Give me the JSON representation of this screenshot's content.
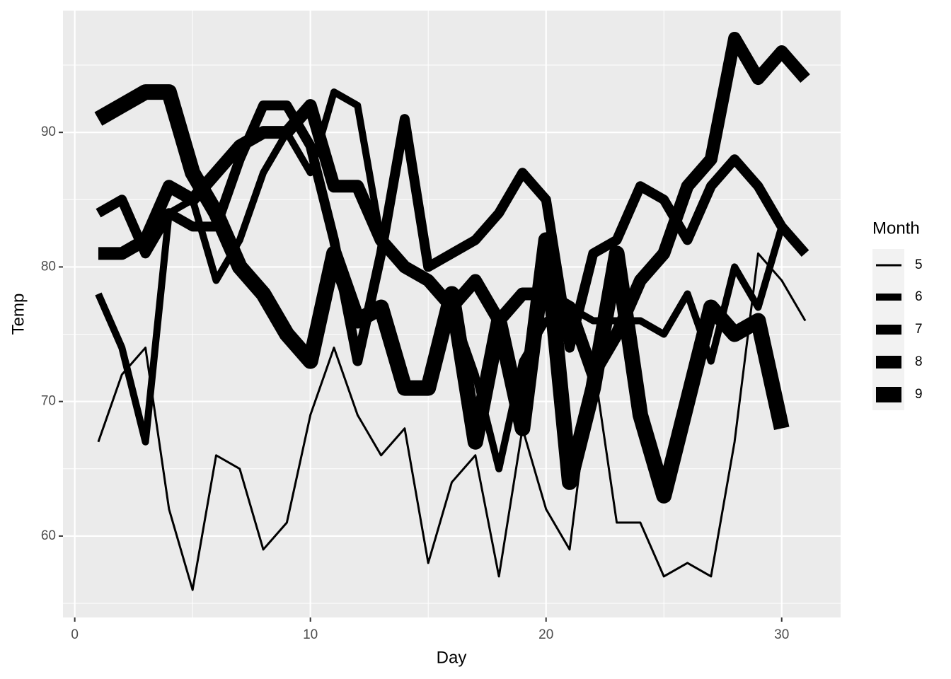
{
  "chart_data": {
    "type": "line",
    "x_label": "Day",
    "y_label": "Temp",
    "legend_title": "Month",
    "legend_position": "right",
    "grid": true,
    "x": [
      1,
      2,
      3,
      4,
      5,
      6,
      7,
      8,
      9,
      10,
      11,
      12,
      13,
      14,
      15,
      16,
      17,
      18,
      19,
      20,
      21,
      22,
      23,
      24,
      25,
      26,
      27,
      28,
      29,
      30,
      31
    ],
    "xlim": [
      -0.5,
      32.5
    ],
    "xticks": [
      0,
      10,
      20,
      30
    ],
    "x_minor_grid": [
      5,
      15,
      25
    ],
    "ylim": [
      53.95,
      99.05
    ],
    "yticks": [
      60,
      70,
      80,
      90
    ],
    "y_minor_grid": [
      55,
      65,
      75,
      85,
      95
    ],
    "series": [
      {
        "name": "5",
        "color": "#000000",
        "linewidth": 3,
        "values": [
          67,
          72,
          74,
          62,
          56,
          66,
          65,
          59,
          61,
          69,
          74,
          69,
          66,
          68,
          58,
          64,
          66,
          57,
          68,
          62,
          59,
          73,
          61,
          61,
          57,
          58,
          57,
          67,
          81,
          79,
          76
        ]
      },
      {
        "name": "6",
        "color": "#000000",
        "linewidth": 10,
        "values": [
          78,
          74,
          67,
          84,
          85,
          79,
          82,
          87,
          90,
          87,
          93,
          92,
          82,
          80,
          79,
          77,
          72,
          65,
          73,
          76,
          77,
          76,
          76,
          76,
          75,
          78,
          73,
          80,
          77,
          83,
          null
        ]
      },
      {
        "name": "7",
        "color": "#000000",
        "linewidth": 14,
        "values": [
          84,
          85,
          81,
          84,
          83,
          83,
          88,
          92,
          92,
          89,
          82,
          73,
          81,
          91,
          80,
          81,
          82,
          84,
          87,
          85,
          74,
          81,
          82,
          86,
          85,
          82,
          86,
          88,
          86,
          83,
          81
        ]
      },
      {
        "name": "8",
        "color": "#000000",
        "linewidth": 18,
        "values": [
          81,
          81,
          82,
          86,
          85,
          87,
          89,
          90,
          90,
          92,
          86,
          86,
          82,
          80,
          79,
          77,
          79,
          76,
          78,
          78,
          77,
          72,
          75,
          79,
          81,
          86,
          88,
          97,
          94,
          96,
          94
        ]
      },
      {
        "name": "9",
        "color": "#000000",
        "linewidth": 22,
        "values": [
          91,
          92,
          93,
          93,
          87,
          84,
          80,
          78,
          75,
          73,
          81,
          76,
          77,
          71,
          71,
          78,
          67,
          76,
          68,
          82,
          64,
          71,
          81,
          69,
          63,
          70,
          77,
          75,
          76,
          68,
          null
        ]
      }
    ]
  }
}
